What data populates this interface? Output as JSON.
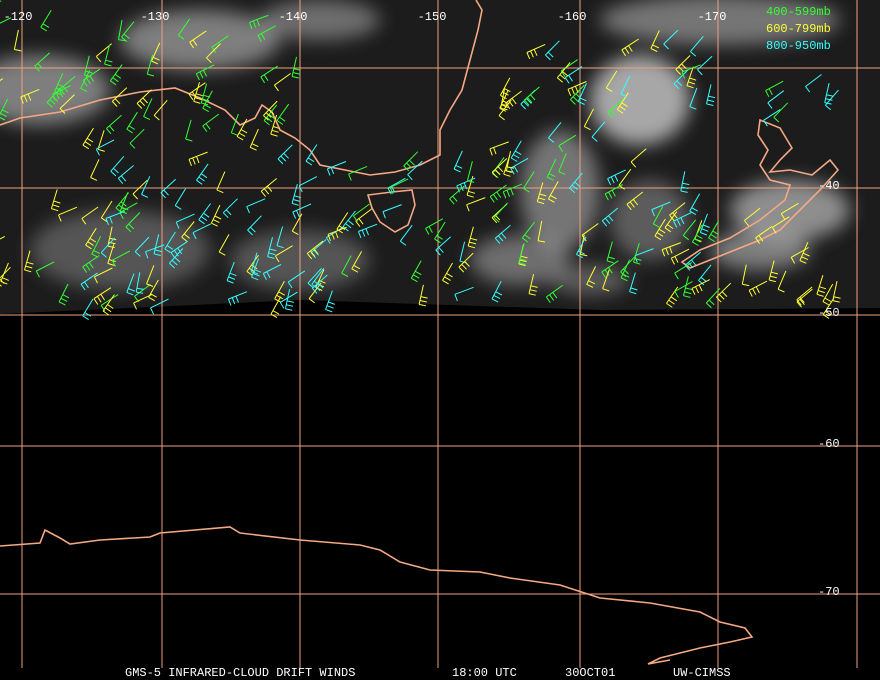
{
  "map": {
    "longitude_labels": [
      "-120",
      "-130",
      "-140",
      "-150",
      "-160",
      "-170"
    ],
    "latitude_labels": [
      "-40",
      "-50",
      "-60",
      "-70"
    ],
    "legend": [
      {
        "label": "400-599mb",
        "color": "#33ff33"
      },
      {
        "label": "600-799mb",
        "color": "#ffff33"
      },
      {
        "label": "800-950mb",
        "color": "#33ffff"
      }
    ],
    "footer": {
      "product": "GMS-5 INFRARED-CLOUD DRIFT WINDS",
      "time": "18:00 UTC",
      "date": "30OCT01",
      "source": "UW-CIMSS"
    }
  }
}
